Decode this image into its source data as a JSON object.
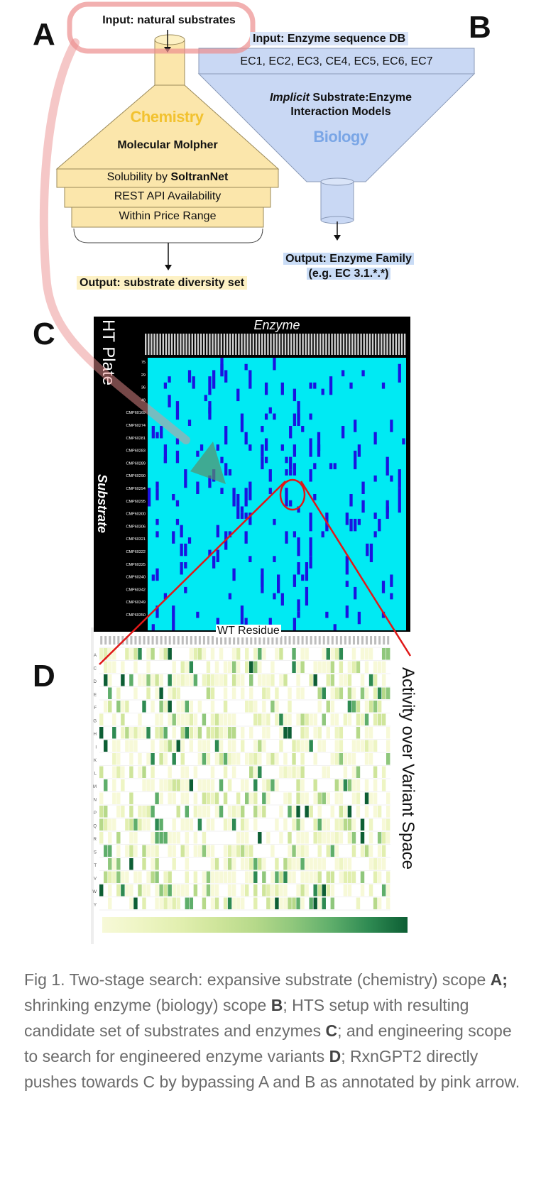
{
  "panels": {
    "A": "A",
    "B": "B",
    "C": "C",
    "D": "D"
  },
  "panel_a": {
    "input": "Input: natural substrates",
    "domain": "Chemistry",
    "tool": "Molecular Molpher",
    "filters": [
      {
        "pre": "Solubility by ",
        "bold": "SoltranNet"
      },
      {
        "pre": "REST API Availability",
        "bold": ""
      },
      {
        "pre": "Within Price Range",
        "bold": ""
      }
    ],
    "output": "Output: substrate diversity set"
  },
  "panel_b": {
    "input": "Input: Enzyme sequence DB",
    "classes": "EC1, EC2, EC3, CE4, EC5, EC6, EC7",
    "model_italic": "Implicit",
    "model_rest_1": " Substrate:Enzyme",
    "model_line_2": "Interaction Models",
    "domain": "Biology",
    "output_line_1": "Output: Enzyme Family",
    "output_line_2": "(e.g. EC 3.1.*.*)"
  },
  "panel_c": {
    "top_label": "Enzyme",
    "plate_label": "HT Plate",
    "side_label": "Substrate",
    "row_labels": [
      "75",
      "29",
      "36",
      "48",
      "CMP60169",
      "CMP60274",
      "CMP60281",
      "CMP60283",
      "CMP60289",
      "CMP60290",
      "CMP60294",
      "CMP60295",
      "CMP60300",
      "CMP60306",
      "CMP60321",
      "CMP60322",
      "CMP60325",
      "CMP60340",
      "CMP60342",
      "CMP60349",
      "CMP60350"
    ]
  },
  "panel_d": {
    "top_label": "WT Residue",
    "side_label": "Activity over Variant Space",
    "amino_acids": [
      "A",
      "C",
      "D",
      "E",
      "F",
      "G",
      "H",
      "I",
      "K",
      "L",
      "M",
      "N",
      "P",
      "Q",
      "R",
      "S",
      "T",
      "V",
      "W",
      "Y"
    ]
  },
  "colors": {
    "chem_fill": "#fbe6ab",
    "bio_fill": "#c9d8f4",
    "chem_text": "#f2c230",
    "bio_text": "#7aa6e6",
    "heat_bg": "#00eaf3",
    "heat_hit": "#1a14e0",
    "pink_arrow": "#ec8f8f",
    "red_line": "#e01818"
  },
  "caption": {
    "p1": "Fig 1. Two-stage search: expansive substrate (chemistry) scope ",
    "b1": "A;",
    "p2": " shrinking enzyme (biology) scope ",
    "b2": "B",
    "p3": "; HTS setup with resulting candidate set of substrates and enzymes ",
    "b3": "C",
    "p4": "; and engineering scope to search for engineered enzyme variants ",
    "b4": "D",
    "p5": "; RxnGPT2 directly pushes towards C by bypassing A and B as annotated by pink arrow."
  }
}
